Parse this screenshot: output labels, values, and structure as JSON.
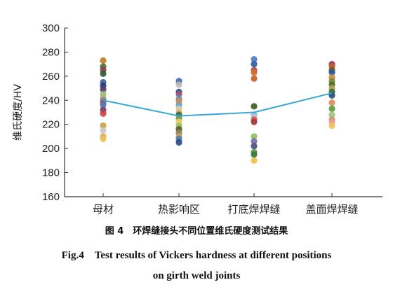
{
  "chart_data": {
    "type": "scatter",
    "ylabel": "维氏硬度/HV",
    "xlabel": "",
    "ylim": [
      160,
      300
    ],
    "yticks": [
      160,
      180,
      200,
      220,
      240,
      260,
      280,
      300
    ],
    "categories": [
      "母材",
      "热影响区",
      "打底焊焊缝",
      "盖面焊焊缝"
    ],
    "grid": false,
    "mean_line": {
      "values": [
        240,
        227,
        230,
        246
      ],
      "color": "#3aa6d6"
    },
    "points": [
      {
        "category": "母材",
        "values": [
          {
            "y": 273,
            "color": "#c07a1e"
          },
          {
            "y": 268,
            "color": "#4e6b2a"
          },
          {
            "y": 265,
            "color": "#8a3d57"
          },
          {
            "y": 262,
            "color": "#2f5d2f"
          },
          {
            "y": 255,
            "color": "#3a5fa0"
          },
          {
            "y": 252,
            "color": "#1f3d7a"
          },
          {
            "y": 249,
            "color": "#5e3a6e"
          },
          {
            "y": 245,
            "color": "#8fc07a"
          },
          {
            "y": 242,
            "color": "#c9a86a"
          },
          {
            "y": 240,
            "color": "#6a8ab8"
          },
          {
            "y": 238,
            "color": "#b05050"
          },
          {
            "y": 236,
            "color": "#4a7ac0"
          },
          {
            "y": 232,
            "color": "#7a3a5a"
          },
          {
            "y": 229,
            "color": "#d04040"
          },
          {
            "y": 219,
            "color": "#c8a040"
          },
          {
            "y": 215,
            "color": "#c8c8c8"
          },
          {
            "y": 210,
            "color": "#e0a860"
          },
          {
            "y": 208,
            "color": "#f0c050"
          }
        ]
      },
      {
        "category": "热影响区",
        "values": [
          {
            "y": 256,
            "color": "#3a6ab8"
          },
          {
            "y": 253,
            "color": "#b8b8b8"
          },
          {
            "y": 247,
            "color": "#2f4f8f"
          },
          {
            "y": 245,
            "color": "#9a5a7a"
          },
          {
            "y": 241,
            "color": "#5a8ac0"
          },
          {
            "y": 239,
            "color": "#e08a40"
          },
          {
            "y": 236,
            "color": "#6aa0d0"
          },
          {
            "y": 233,
            "color": "#d0d0a0"
          },
          {
            "y": 230,
            "color": "#e8b070"
          },
          {
            "y": 228,
            "color": "#2f6f3f"
          },
          {
            "y": 225,
            "color": "#7a9a40"
          },
          {
            "y": 222,
            "color": "#f0d060"
          },
          {
            "y": 219,
            "color": "#a0c060"
          },
          {
            "y": 216,
            "color": "#5a5a2a"
          },
          {
            "y": 213,
            "color": "#8a8a4a"
          },
          {
            "y": 210,
            "color": "#c0a060"
          },
          {
            "y": 208,
            "color": "#4a7ab8"
          },
          {
            "y": 205,
            "color": "#2a4a8a"
          }
        ]
      },
      {
        "category": "打底焊焊缝",
        "values": [
          {
            "y": 274,
            "color": "#4a7ac0"
          },
          {
            "y": 270,
            "color": "#2a5a9a"
          },
          {
            "y": 265,
            "color": "#b04040"
          },
          {
            "y": 263,
            "color": "#d07030"
          },
          {
            "y": 258,
            "color": "#c85a2a"
          },
          {
            "y": 235,
            "color": "#3a5a1a"
          },
          {
            "y": 228,
            "color": "#8ab0d8"
          },
          {
            "y": 226,
            "color": "#b8c8d8"
          },
          {
            "y": 224,
            "color": "#e05050"
          },
          {
            "y": 222,
            "color": "#a03a3a"
          },
          {
            "y": 210,
            "color": "#8ac060"
          },
          {
            "y": 206,
            "color": "#7a6ab0"
          },
          {
            "y": 202,
            "color": "#4a4a7a"
          },
          {
            "y": 197,
            "color": "#5a9a4a"
          },
          {
            "y": 195,
            "color": "#3a7a3a"
          },
          {
            "y": 190,
            "color": "#f0c040"
          }
        ]
      },
      {
        "category": "盖面焊焊缝",
        "values": [
          {
            "y": 270,
            "color": "#8a3a5a"
          },
          {
            "y": 268,
            "color": "#c06030"
          },
          {
            "y": 265,
            "color": "#6a5a2a"
          },
          {
            "y": 263,
            "color": "#2a5aa0"
          },
          {
            "y": 259,
            "color": "#d08a3a"
          },
          {
            "y": 256,
            "color": "#7a8a3a"
          },
          {
            "y": 253,
            "color": "#4a6a2a"
          },
          {
            "y": 250,
            "color": "#b0a050"
          },
          {
            "y": 247,
            "color": "#3a6a3a"
          },
          {
            "y": 244,
            "color": "#2a4a7a"
          },
          {
            "y": 238,
            "color": "#e08a5a"
          },
          {
            "y": 233,
            "color": "#5a9a3a"
          },
          {
            "y": 228,
            "color": "#a0c080"
          },
          {
            "y": 224,
            "color": "#d09070"
          },
          {
            "y": 222,
            "color": "#e0a0a0"
          },
          {
            "y": 219,
            "color": "#f0c050"
          }
        ]
      }
    ]
  },
  "caption": {
    "zh": "图 4　环焊缝接头不同位置维氏硬度测试结果",
    "en_line1": "Fig.4　Test results of Vickers hardness at different positions",
    "en_line2": "on girth weld joints"
  }
}
